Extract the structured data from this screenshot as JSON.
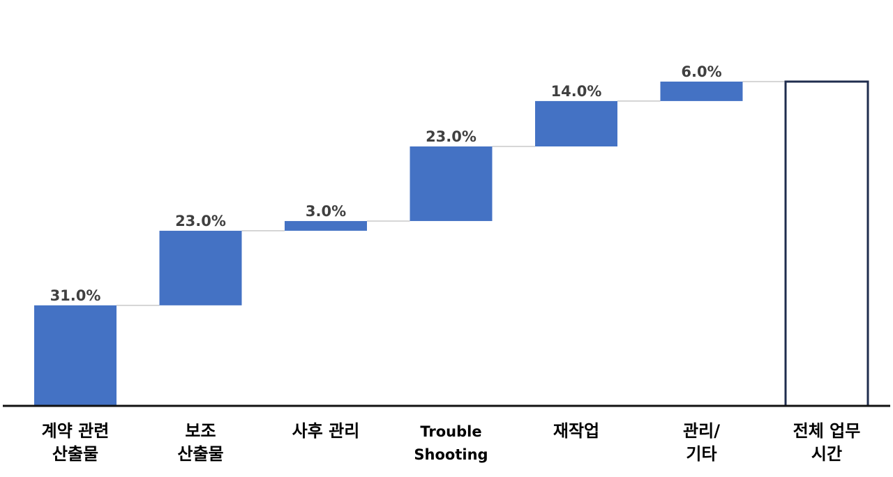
{
  "chart_data": {
    "type": "bar",
    "subtype": "waterfall",
    "categories": [
      [
        "계약 관련",
        "산출물"
      ],
      [
        "보조",
        "산출물"
      ],
      [
        "사후 관리"
      ],
      [
        "Trouble",
        "Shooting"
      ],
      [
        "재작업"
      ],
      [
        "관리/",
        "기타"
      ],
      [
        "전체 업무",
        "시간"
      ]
    ],
    "values": [
      31.0,
      23.0,
      3.0,
      23.0,
      14.0,
      6.0,
      100.0
    ],
    "data_labels": [
      "31.0%",
      "23.0%",
      "3.0%",
      "23.0%",
      "14.0%",
      "6.0%",
      ""
    ],
    "total_index": 6,
    "ylim": [
      0,
      100
    ],
    "grid": false,
    "legend": "none",
    "colors": {
      "step": "#4472C4",
      "total_fill": "#FFFFFF",
      "total_stroke": "#1F2D4E",
      "connector": "#C8C8C8",
      "axis": "#111111"
    }
  }
}
